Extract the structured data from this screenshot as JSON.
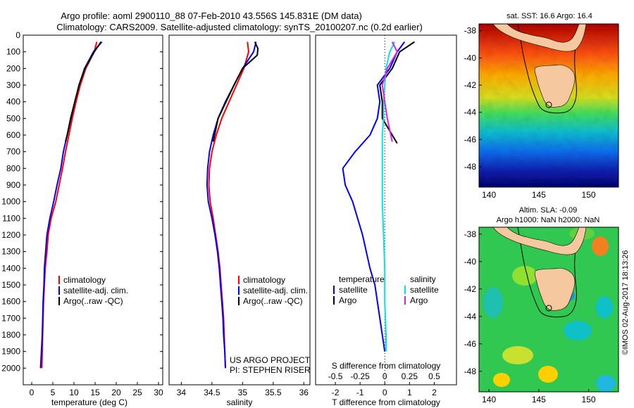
{
  "header": {
    "title_line1": "Argo profile: aoml 2900110_88 07-Feb-2010 43.556S 145.831E (DM data)",
    "title_line2": "Climatology: CARS2009. Satellite-adjusted climatology: synTS_20100207.nc (0.2d earlier)"
  },
  "colors": {
    "climatology": "#ff0000",
    "satellite_adj": "#0000ff",
    "argo": "#000000",
    "salinity_satellite": "#00e5e5",
    "salinity_argo": "#e020e0"
  },
  "chart_data": [
    {
      "type": "line",
      "panel": "temperature",
      "xlabel": "temperature (deg C)",
      "ylabel": "",
      "xlim": [
        -2,
        31
      ],
      "ylim": [
        2100,
        0
      ],
      "y_reversed": true,
      "xticks": [
        0,
        5,
        10,
        15,
        20,
        25,
        30
      ],
      "yticks": [
        0,
        100,
        200,
        300,
        400,
        500,
        600,
        700,
        800,
        900,
        1000,
        1100,
        1200,
        1300,
        1400,
        1500,
        1600,
        1700,
        1800,
        1900,
        2000
      ],
      "legend": {
        "position": "bottom-center",
        "entries": [
          "climatology",
          "satellite-adj. clim.",
          "Argo(..raw -QC)"
        ]
      },
      "series": [
        {
          "name": "climatology",
          "color": "#ff0000",
          "x": [
            15.4,
            14.8,
            12.8,
            11.5,
            10.5,
            9.6,
            8.8,
            8.0,
            7.3,
            6.5,
            5.7,
            4.6,
            3.9,
            3.6,
            3.2,
            3.0,
            2.8,
            2.7,
            2.6,
            2.5,
            2.4
          ],
          "y": [
            40,
            100,
            200,
            300,
            400,
            500,
            600,
            700,
            800,
            900,
            1000,
            1100,
            1200,
            1300,
            1400,
            1500,
            1600,
            1700,
            1800,
            1900,
            2000
          ]
        },
        {
          "name": "satellite-adj. clim.",
          "color": "#0000ff",
          "x": [
            16.6,
            14.6,
            12.5,
            11.2,
            10.2,
            9.3,
            8.4,
            7.5,
            6.9,
            6.0,
            5.2,
            4.3,
            3.6,
            3.3,
            3.0,
            2.9,
            2.7,
            2.6,
            2.5,
            2.3,
            2.1
          ],
          "y": [
            40,
            100,
            200,
            300,
            400,
            500,
            600,
            700,
            800,
            900,
            1000,
            1100,
            1200,
            1300,
            1400,
            1500,
            1600,
            1700,
            1800,
            1900,
            2000
          ]
        },
        {
          "name": "Argo(..raw -QC)",
          "color": "#000000",
          "x": [
            16.4,
            14.8,
            12.6,
            11.2,
            10.2,
            9.2,
            8.4,
            8.0
          ],
          "y": [
            40,
            100,
            200,
            300,
            400,
            500,
            600,
            640
          ]
        }
      ]
    },
    {
      "type": "line",
      "panel": "salinity",
      "xlabel": "salinity",
      "ylabel": "",
      "xlim": [
        33.8,
        36.1
      ],
      "ylim": [
        2100,
        0
      ],
      "y_reversed": true,
      "xticks": [
        34,
        34.5,
        35,
        35.5,
        36
      ],
      "annotations": [
        "US ARGO PROJECT",
        "PI: STEPHEN RISER"
      ],
      "legend": {
        "position": "bottom-center",
        "entries": [
          "climatology",
          "satellite-adj. clim.",
          "Argo(..raw -QC)"
        ]
      },
      "series": [
        {
          "name": "climatology",
          "color": "#ff0000",
          "x": [
            35.08,
            35.1,
            35.02,
            34.9,
            34.78,
            34.66,
            34.57,
            34.5,
            34.46,
            34.45,
            34.47,
            34.52,
            34.56,
            34.6,
            34.63,
            34.65,
            34.67,
            34.69,
            34.7,
            34.71,
            34.72
          ],
          "y": [
            40,
            100,
            200,
            300,
            400,
            500,
            600,
            700,
            800,
            900,
            1000,
            1100,
            1200,
            1300,
            1400,
            1500,
            1600,
            1700,
            1800,
            1900,
            2000
          ]
        },
        {
          "name": "satellite-adj. clim.",
          "color": "#0000ff",
          "x": [
            35.22,
            35.18,
            35.0,
            34.86,
            34.72,
            34.6,
            34.52,
            34.46,
            34.43,
            34.42,
            34.44,
            34.5,
            34.55,
            34.59,
            34.62,
            34.64,
            34.66,
            34.68,
            34.69,
            34.71,
            34.72
          ],
          "y": [
            40,
            100,
            200,
            300,
            400,
            500,
            600,
            700,
            800,
            900,
            1000,
            1100,
            1200,
            1300,
            1400,
            1500,
            1600,
            1700,
            1800,
            1900,
            2000
          ]
        },
        {
          "name": "Argo(..raw -QC)",
          "color": "#000000",
          "x": [
            35.2,
            35.25,
            35.24,
            35.0,
            34.86,
            34.73,
            34.6,
            34.52
          ],
          "y": [
            40,
            80,
            120,
            200,
            300,
            400,
            500,
            640
          ]
        }
      ]
    },
    {
      "type": "line",
      "panel": "difference",
      "xlabel": "T difference from climatology",
      "xlabel_top": "S difference from climatology",
      "xlim": [
        -2.8,
        2.9
      ],
      "ylim": [
        2100,
        0
      ],
      "y_reversed": true,
      "xticks": [
        -2,
        -1,
        0,
        1,
        2
      ],
      "xticks_S": [
        -0.5,
        -0.25,
        0,
        0.25,
        0.5
      ],
      "legend": {
        "position": "bottom",
        "temperature_header": "temperature",
        "salinity_header": "salinity",
        "entries_T": [
          "satellite",
          "Argo"
        ],
        "entries_S": [
          "satellite",
          "Argo"
        ]
      },
      "series": [
        {
          "name": "T satellite",
          "color": "#0000ff",
          "x": [
            0.8,
            0.5,
            0.2,
            -0.3,
            -0.2,
            -0.3,
            -0.6,
            -1.2,
            -1.7,
            -1.6,
            -1.3,
            -0.9,
            -0.6,
            -0.4,
            -0.3,
            -0.2,
            -0.1,
            0.0
          ],
          "y": [
            40,
            100,
            200,
            300,
            400,
            500,
            600,
            700,
            800,
            900,
            1000,
            1200,
            1400,
            1500,
            1600,
            1700,
            1800,
            1900
          ]
        },
        {
          "name": "T Argo",
          "color": "#000000",
          "x": [
            1.2,
            0.6,
            0.3,
            -0.2,
            -0.1,
            -0.1,
            0.5
          ],
          "y": [
            40,
            100,
            200,
            300,
            400,
            500,
            650
          ]
        },
        {
          "name": "S satellite",
          "color": "#00e5e5",
          "x": [
            0.4,
            0.2,
            0.05,
            0.0,
            -0.05,
            -0.05,
            -0.1,
            -0.1,
            -0.1,
            -0.05,
            0.0,
            0.0,
            0.05,
            0.05
          ],
          "y": [
            40,
            100,
            200,
            300,
            400,
            500,
            600,
            800,
            1000,
            1200,
            1400,
            1600,
            1800,
            1900
          ]
        },
        {
          "name": "S Argo",
          "color": "#e020e0",
          "x": [
            0.3,
            0.5,
            0.1,
            -0.1,
            0.0,
            0.1,
            0.3
          ],
          "y": [
            40,
            100,
            200,
            300,
            400,
            500,
            640
          ]
        }
      ]
    },
    {
      "type": "heatmap",
      "panel": "sst_map",
      "title": "sat. SST: 16.6 Argo: 16.4",
      "xlim": [
        139,
        153
      ],
      "ylim": [
        -49.5,
        -37.5
      ],
      "xticks": [
        140,
        145,
        150
      ],
      "yticks": [
        -38,
        -40,
        -42,
        -44,
        -46,
        -48
      ]
    },
    {
      "type": "heatmap",
      "panel": "sla_map",
      "title_line1": "Altim. SLA: -0.09",
      "title_line2": "Argo h1000: NaN h2000: NaN",
      "side_label": "©IMOS 02-Aug-2017 18:13:26",
      "xlim": [
        139,
        153
      ],
      "ylim": [
        -49.5,
        -37.5
      ],
      "xticks": [
        140,
        145,
        150
      ],
      "yticks": [
        -38,
        -40,
        -42,
        -44,
        -46,
        -48
      ]
    }
  ]
}
